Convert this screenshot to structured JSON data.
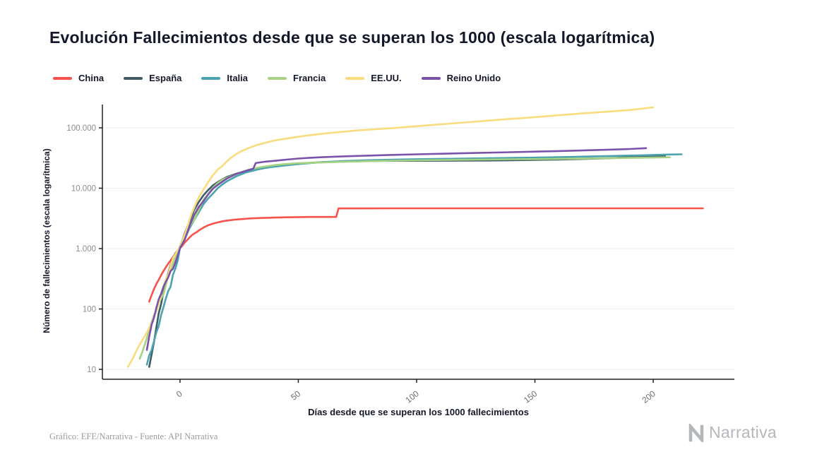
{
  "chart_data": {
    "type": "line",
    "title": "Evolución Fallecimientos desde que se superan los 1000 (escala logarítmica)",
    "xlabel": "Días desde que se superan los 1000 fallecimientos",
    "ylabel": "Número de fallecimientos (escala logarítmica)",
    "legend_position": "top-left",
    "grid": "horizontal-only",
    "x_axis": {
      "ticks": [
        0,
        50,
        100,
        150,
        200
      ],
      "range": [
        -32.8,
        234.3
      ],
      "tick_rotation_deg": -38
    },
    "y_axis": {
      "scale": "log",
      "ticks": [
        10,
        100,
        1000,
        10000,
        100000
      ],
      "tick_labels": [
        "10",
        "100",
        "1.000",
        "10.000",
        "100.000"
      ],
      "range": [
        6.86,
        243000
      ]
    },
    "series": [
      {
        "name": "China",
        "color": "#f8524d",
        "points": [
          [
            -13,
            132
          ],
          [
            -12,
            170
          ],
          [
            -11,
            213
          ],
          [
            -10,
            259
          ],
          [
            -9,
            304
          ],
          [
            -8,
            361
          ],
          [
            -7,
            425
          ],
          [
            -6,
            490
          ],
          [
            -5,
            563
          ],
          [
            -4,
            636
          ],
          [
            -3,
            722
          ],
          [
            -2,
            811
          ],
          [
            -1,
            908
          ],
          [
            0,
            1016
          ],
          [
            1,
            1113
          ],
          [
            2,
            1259
          ],
          [
            3,
            1380
          ],
          [
            4,
            1523
          ],
          [
            5,
            1665
          ],
          [
            6,
            1770
          ],
          [
            7,
            1868
          ],
          [
            8,
            2004
          ],
          [
            9,
            2118
          ],
          [
            10,
            2236
          ],
          [
            12,
            2442
          ],
          [
            14,
            2592
          ],
          [
            16,
            2715
          ],
          [
            18,
            2835
          ],
          [
            20,
            2912
          ],
          [
            23,
            3013
          ],
          [
            26,
            3070
          ],
          [
            30,
            3162
          ],
          [
            35,
            3217
          ],
          [
            40,
            3261
          ],
          [
            45,
            3299
          ],
          [
            50,
            3326
          ],
          [
            55,
            3338
          ],
          [
            60,
            3341
          ],
          [
            66,
            3342
          ],
          [
            67,
            4632
          ],
          [
            70,
            4633
          ],
          [
            90,
            4634
          ],
          [
            120,
            4634
          ],
          [
            160,
            4634
          ],
          [
            200,
            4634
          ],
          [
            221,
            4636
          ]
        ]
      },
      {
        "name": "España",
        "color": "#3f5c66",
        "points": [
          [
            -13,
            11
          ],
          [
            -11,
            28
          ],
          [
            -9,
            84
          ],
          [
            -8,
            120
          ],
          [
            -7,
            191
          ],
          [
            -6,
            289
          ],
          [
            -5,
            392
          ],
          [
            -4,
            533
          ],
          [
            -3,
            680
          ],
          [
            -2,
            830
          ],
          [
            0,
            1043
          ],
          [
            2,
            1772
          ],
          [
            4,
            2808
          ],
          [
            6,
            4365
          ],
          [
            8,
            5982
          ],
          [
            10,
            7716
          ],
          [
            12,
            9387
          ],
          [
            14,
            11198
          ],
          [
            16,
            12641
          ],
          [
            18,
            14045
          ],
          [
            20,
            15447
          ],
          [
            24,
            17489
          ],
          [
            28,
            19130
          ],
          [
            33,
            21282
          ],
          [
            36,
            22157
          ],
          [
            40,
            23190
          ],
          [
            45,
            24544
          ],
          [
            50,
            25613
          ],
          [
            55,
            26299
          ],
          [
            60,
            26920
          ],
          [
            70,
            27650
          ],
          [
            80,
            28152
          ],
          [
            90,
            28396
          ],
          [
            100,
            28445
          ],
          [
            110,
            28499
          ],
          [
            120,
            28576
          ],
          [
            130,
            28752
          ],
          [
            140,
            29011
          ],
          [
            150,
            29418
          ],
          [
            160,
            29848
          ],
          [
            170,
            30495
          ],
          [
            180,
            31200
          ],
          [
            185,
            31900
          ],
          [
            187,
            32400
          ],
          [
            192,
            32700
          ],
          [
            198,
            33200
          ],
          [
            205,
            33900
          ]
        ]
      },
      {
        "name": "Italia",
        "color": "#4ba3af",
        "points": [
          [
            -14,
            12
          ],
          [
            -13,
            17
          ],
          [
            -12,
            21
          ],
          [
            -11,
            29
          ],
          [
            -10,
            41
          ],
          [
            -9,
            52
          ],
          [
            -8,
            79
          ],
          [
            -7,
            107
          ],
          [
            -6,
            148
          ],
          [
            -5,
            197
          ],
          [
            -4,
            233
          ],
          [
            -3,
            366
          ],
          [
            -2,
            463
          ],
          [
            -1,
            631
          ],
          [
            0,
            1016
          ],
          [
            2,
            1441
          ],
          [
            4,
            2158
          ],
          [
            6,
            2978
          ],
          [
            8,
            4032
          ],
          [
            10,
            5476
          ],
          [
            12,
            6820
          ],
          [
            14,
            8215
          ],
          [
            16,
            10023
          ],
          [
            18,
            11591
          ],
          [
            20,
            13155
          ],
          [
            24,
            15887
          ],
          [
            28,
            18279
          ],
          [
            33,
            20465
          ],
          [
            36,
            21645
          ],
          [
            40,
            22745
          ],
          [
            45,
            23900
          ],
          [
            50,
            25100
          ],
          [
            55,
            26100
          ],
          [
            60,
            26977
          ],
          [
            70,
            28236
          ],
          [
            80,
            29079
          ],
          [
            90,
            29684
          ],
          [
            100,
            30201
          ],
          [
            120,
            30911
          ],
          [
            140,
            31763
          ],
          [
            160,
            32616
          ],
          [
            180,
            33923
          ],
          [
            195,
            35100
          ],
          [
            205,
            36000
          ],
          [
            212,
            36427
          ]
        ]
      },
      {
        "name": "Francia",
        "color": "#a5d283",
        "points": [
          [
            -17,
            15
          ],
          [
            -16,
            19
          ],
          [
            -15,
            25
          ],
          [
            -14,
            33
          ],
          [
            -13,
            48
          ],
          [
            -12,
            61
          ],
          [
            -11,
            79
          ],
          [
            -10,
            91
          ],
          [
            -9,
            127
          ],
          [
            -8,
            148
          ],
          [
            -7,
            175
          ],
          [
            -6,
            244
          ],
          [
            -5,
            372
          ],
          [
            -4,
            450
          ],
          [
            -3,
            562
          ],
          [
            -2,
            674
          ],
          [
            -1,
            860
          ],
          [
            0,
            1100
          ],
          [
            2,
            1696
          ],
          [
            4,
            2314
          ],
          [
            6,
            3024
          ],
          [
            8,
            4403
          ],
          [
            10,
            6507
          ],
          [
            12,
            8078
          ],
          [
            14,
            10328
          ],
          [
            16,
            12210
          ],
          [
            18,
            13832
          ],
          [
            20,
            14967
          ],
          [
            24,
            17167
          ],
          [
            28,
            19718
          ],
          [
            33,
            21856
          ],
          [
            36,
            22856
          ],
          [
            40,
            24087
          ],
          [
            45,
            25200
          ],
          [
            50,
            25900
          ],
          [
            55,
            26250
          ],
          [
            60,
            26643
          ],
          [
            70,
            27425
          ],
          [
            80,
            28022
          ],
          [
            90,
            28546
          ],
          [
            100,
            28940
          ],
          [
            120,
            29574
          ],
          [
            140,
            30123
          ],
          [
            160,
            30613
          ],
          [
            180,
            31274
          ],
          [
            195,
            31950
          ],
          [
            207,
            32521
          ]
        ]
      },
      {
        "name": "EE.UU.",
        "color": "#f8dc7d",
        "points": [
          [
            -22,
            11
          ],
          [
            -20,
            15
          ],
          [
            -18,
            22
          ],
          [
            -16,
            30
          ],
          [
            -14,
            41
          ],
          [
            -12,
            58
          ],
          [
            -10,
            95
          ],
          [
            -9,
            121
          ],
          [
            -8,
            171
          ],
          [
            -7,
            239
          ],
          [
            -6,
            309
          ],
          [
            -5,
            374
          ],
          [
            -4,
            509
          ],
          [
            -3,
            689
          ],
          [
            -2,
            800
          ],
          [
            -1,
            942
          ],
          [
            0,
            1050
          ],
          [
            1,
            1296
          ],
          [
            2,
            1695
          ],
          [
            3,
            2220
          ],
          [
            4,
            2978
          ],
          [
            5,
            3873
          ],
          [
            6,
            4757
          ],
          [
            7,
            5926
          ],
          [
            8,
            7087
          ],
          [
            10,
            9619
          ],
          [
            12,
            12722
          ],
          [
            14,
            16478
          ],
          [
            16,
            20463
          ],
          [
            18,
            23529
          ],
          [
            20,
            28325
          ],
          [
            22,
            32916
          ],
          [
            24,
            37158
          ],
          [
            26,
            41114
          ],
          [
            28,
            44444
          ],
          [
            30,
            47894
          ],
          [
            33,
            52459
          ],
          [
            36,
            56259
          ],
          [
            40,
            61656
          ],
          [
            45,
            66369
          ],
          [
            50,
            71064
          ],
          [
            55,
            75670
          ],
          [
            60,
            79526
          ],
          [
            65,
            83425
          ],
          [
            70,
            86912
          ],
          [
            75,
            90347
          ],
          [
            80,
            93439
          ],
          [
            90,
            98929
          ],
          [
            100,
            106180
          ],
          [
            110,
            114148
          ],
          [
            120,
            122300
          ],
          [
            130,
            131480
          ],
          [
            140,
            140563
          ],
          [
            150,
            150054
          ],
          [
            160,
            161367
          ],
          [
            170,
            173000
          ],
          [
            180,
            184000
          ],
          [
            190,
            197000
          ],
          [
            200,
            218000
          ]
        ]
      },
      {
        "name": "Reino Unido",
        "color": "#7b52ab",
        "points": [
          [
            -14,
            21
          ],
          [
            -13,
            35
          ],
          [
            -12,
            55
          ],
          [
            -11,
            71
          ],
          [
            -10,
            104
          ],
          [
            -9,
            144
          ],
          [
            -8,
            177
          ],
          [
            -7,
            233
          ],
          [
            -6,
            281
          ],
          [
            -5,
            335
          ],
          [
            -4,
            422
          ],
          [
            -3,
            463
          ],
          [
            -2,
            578
          ],
          [
            -1,
            759
          ],
          [
            0,
            1019
          ],
          [
            2,
            1408
          ],
          [
            4,
            2352
          ],
          [
            6,
            3605
          ],
          [
            8,
            4934
          ],
          [
            10,
            6159
          ],
          [
            12,
            7978
          ],
          [
            14,
            9875
          ],
          [
            16,
            11329
          ],
          [
            18,
            12868
          ],
          [
            20,
            14576
          ],
          [
            24,
            17337
          ],
          [
            28,
            19506
          ],
          [
            31,
            21092
          ],
          [
            32,
            26097
          ],
          [
            36,
            27510
          ],
          [
            40,
            28446
          ],
          [
            45,
            29750
          ],
          [
            50,
            31000
          ],
          [
            55,
            31900
          ],
          [
            60,
            32600
          ],
          [
            70,
            33800
          ],
          [
            80,
            34700
          ],
          [
            90,
            35600
          ],
          [
            100,
            36400
          ],
          [
            120,
            38000
          ],
          [
            140,
            39500
          ],
          [
            160,
            41200
          ],
          [
            180,
            43200
          ],
          [
            190,
            44600
          ],
          [
            197,
            46000
          ]
        ]
      }
    ]
  },
  "footer": {
    "source": "Gráfico: EFE/Narrativa - Fuente: API Narrativa",
    "logo_text": "Narrativa"
  },
  "style": {
    "grid_color": "#ececec",
    "axis_color": "#222222",
    "tick_label_color": "#8c8c8c",
    "title_color": "#15182b",
    "brand_color": "#b4b7ba"
  }
}
